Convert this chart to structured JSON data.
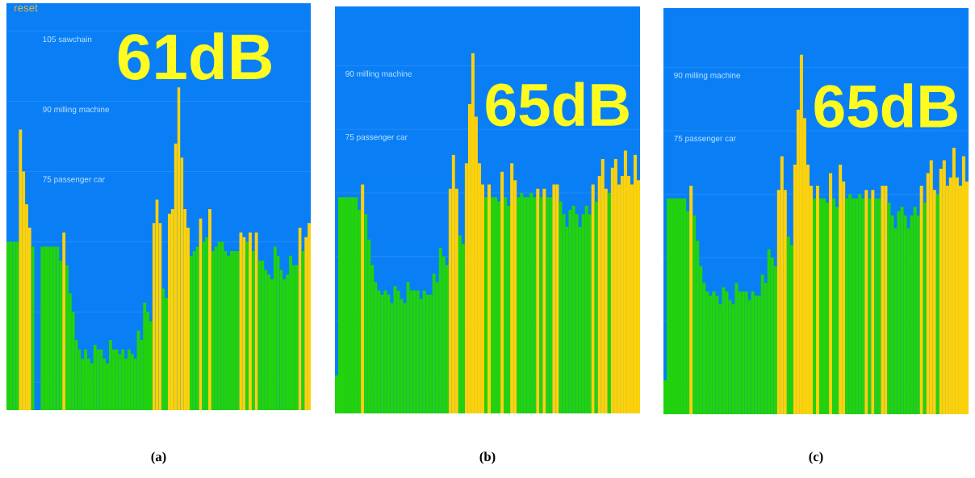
{
  "chart_data": [
    {
      "type": "bar",
      "title": "(a)",
      "annotations": [
        "reset",
        "61dB"
      ],
      "grid": "y",
      "ylim": [
        24,
        111
      ],
      "yticks": [
        {
          "value": 30,
          "label": null
        },
        {
          "value": 45,
          "label": null
        },
        {
          "value": 60,
          "label": null
        },
        {
          "value": 75,
          "label": "75 passenger car"
        },
        {
          "value": 90,
          "label": "90 milling machine"
        },
        {
          "value": 105,
          "label": "105 sawchain"
        }
      ],
      "categories": [
        null,
        null,
        null,
        null,
        null,
        null,
        null,
        null,
        null,
        null,
        null,
        null,
        null,
        null,
        null,
        null,
        null,
        null,
        null,
        null,
        null,
        null,
        null,
        null,
        null,
        null,
        null,
        null,
        null,
        null,
        null,
        null,
        null,
        null,
        null,
        null,
        null,
        null,
        null,
        null,
        null,
        null,
        null,
        null,
        null,
        null,
        null,
        null,
        null,
        null,
        null,
        null,
        null,
        null,
        null,
        null,
        null,
        null,
        null,
        null,
        null,
        null,
        null,
        null,
        null,
        null,
        null,
        null,
        null,
        null,
        null,
        null,
        null,
        null,
        null,
        null,
        null,
        null,
        null,
        null,
        null,
        null,
        null,
        null,
        null,
        null,
        null,
        null,
        null,
        null,
        null,
        null,
        null,
        null,
        null,
        null,
        null,
        null
      ],
      "values": [
        60,
        60,
        60,
        60,
        84,
        75,
        68,
        63,
        59,
        null,
        null,
        59,
        59,
        59,
        59,
        59,
        59,
        56,
        62,
        55,
        49,
        45,
        39,
        37,
        35,
        37,
        35,
        34,
        38,
        37,
        37,
        35,
        34,
        39,
        37,
        37,
        36,
        37,
        35,
        37,
        36,
        35,
        41,
        39,
        47,
        45,
        43,
        64,
        69,
        64,
        50,
        48,
        66,
        67,
        81,
        93,
        78,
        67,
        63,
        57,
        58,
        59,
        65,
        60,
        61,
        67,
        58,
        59,
        60,
        60,
        58,
        57,
        58,
        58,
        58,
        62,
        61,
        60,
        62,
        58,
        62,
        56,
        56,
        54,
        53,
        52,
        59,
        57,
        54,
        52,
        53,
        57,
        55,
        55,
        63,
        58,
        61,
        64
      ],
      "colors": [
        "#22d30c",
        "#22d30c",
        "#22d30c",
        "#22d30c",
        "#fdd20b",
        "#fdd20b",
        "#fdd20b",
        "#fdd20b",
        "#22d30c",
        "#22d30c",
        "#22d30c",
        "#22d30c",
        "#22d30c",
        "#22d30c",
        "#22d30c",
        "#22d30c",
        "#22d30c",
        "#22d30c",
        "#fdd20b",
        "#22d30c",
        "#22d30c",
        "#22d30c",
        "#22d30c",
        "#22d30c",
        "#22d30c",
        "#22d30c",
        "#22d30c",
        "#22d30c",
        "#22d30c",
        "#22d30c",
        "#22d30c",
        "#22d30c",
        "#22d30c",
        "#22d30c",
        "#22d30c",
        "#22d30c",
        "#22d30c",
        "#22d30c",
        "#22d30c",
        "#22d30c",
        "#22d30c",
        "#22d30c",
        "#22d30c",
        "#22d30c",
        "#22d30c",
        "#22d30c",
        "#22d30c",
        "#fdd20b",
        "#fdd20b",
        "#fdd20b",
        "#22d30c",
        "#22d30c",
        "#fdd20b",
        "#fdd20b",
        "#fdd20b",
        "#fdd20b",
        "#fdd20b",
        "#fdd20b",
        "#fdd20b",
        "#22d30c",
        "#22d30c",
        "#22d30c",
        "#fdd20b",
        "#22d30c",
        "#22d30c",
        "#fdd20b",
        "#22d30c",
        "#22d30c",
        "#22d30c",
        "#22d30c",
        "#22d30c",
        "#22d30c",
        "#22d30c",
        "#22d30c",
        "#22d30c",
        "#fdd20b",
        "#fdd20b",
        "#22d30c",
        "#fdd20b",
        "#22d30c",
        "#fdd20b",
        "#22d30c",
        "#22d30c",
        "#22d30c",
        "#22d30c",
        "#22d30c",
        "#22d30c",
        "#22d30c",
        "#22d30c",
        "#22d30c",
        "#22d30c",
        "#22d30c",
        "#22d30c",
        "#22d30c",
        "#fdd20b",
        "#22d30c",
        "#fdd20b",
        "#fdd20b"
      ]
    },
    {
      "type": "bar",
      "title": "(b)",
      "annotations": [
        "65dB"
      ],
      "grid": "y",
      "ylim": [
        8,
        104
      ],
      "yticks": [
        {
          "value": 15,
          "label": null
        },
        {
          "value": 30,
          "label": null
        },
        {
          "value": 45,
          "label": null
        },
        {
          "value": 60,
          "label": null
        },
        {
          "value": 75,
          "label": "75 passenger car"
        },
        {
          "value": 90,
          "label": "90 milling machine"
        }
      ],
      "categories": [
        null,
        null,
        null,
        null,
        null,
        null,
        null,
        null,
        null,
        null,
        null,
        null,
        null,
        null,
        null,
        null,
        null,
        null,
        null,
        null,
        null,
        null,
        null,
        null,
        null,
        null,
        null,
        null,
        null,
        null,
        null,
        null,
        null,
        null,
        null,
        null,
        null,
        null,
        null,
        null,
        null,
        null,
        null,
        null,
        null,
        null,
        null,
        null,
        null,
        null,
        null,
        null,
        null,
        null,
        null,
        null,
        null,
        null,
        null,
        null,
        null,
        null,
        null,
        null,
        null,
        null,
        null,
        null,
        null,
        null,
        null,
        null,
        null,
        null,
        null,
        null,
        null,
        null,
        null,
        null,
        null,
        null,
        null,
        null,
        null,
        null,
        null,
        null,
        null,
        null,
        null,
        null,
        null,
        null
      ],
      "values": [
        17,
        59,
        59,
        59,
        59,
        59,
        59,
        56,
        62,
        55,
        49,
        43,
        39,
        37,
        36,
        37,
        36,
        34,
        38,
        37,
        35,
        34,
        39,
        37,
        37,
        37,
        35,
        37,
        36,
        36,
        41,
        39,
        47,
        45,
        43,
        61,
        69,
        61,
        50,
        48,
        67,
        81,
        93,
        78,
        67,
        62,
        59,
        62,
        59,
        59,
        58,
        65,
        59,
        57,
        67,
        63,
        59,
        60,
        59,
        59,
        60,
        59,
        61,
        59,
        61,
        59,
        59,
        62,
        62,
        58,
        55,
        52,
        56,
        57,
        55,
        52,
        55,
        57,
        55,
        62,
        58,
        64,
        68,
        61,
        60,
        66,
        68,
        62,
        64,
        70,
        64,
        62,
        69,
        63
      ],
      "colors": [
        "#22d30c",
        "#22d30c",
        "#22d30c",
        "#22d30c",
        "#22d30c",
        "#22d30c",
        "#22d30c",
        "#22d30c",
        "#fdd20b",
        "#22d30c",
        "#22d30c",
        "#22d30c",
        "#22d30c",
        "#22d30c",
        "#22d30c",
        "#22d30c",
        "#22d30c",
        "#22d30c",
        "#22d30c",
        "#22d30c",
        "#22d30c",
        "#22d30c",
        "#22d30c",
        "#22d30c",
        "#22d30c",
        "#22d30c",
        "#22d30c",
        "#22d30c",
        "#22d30c",
        "#22d30c",
        "#22d30c",
        "#22d30c",
        "#22d30c",
        "#22d30c",
        "#22d30c",
        "#fdd20b",
        "#fdd20b",
        "#fdd20b",
        "#22d30c",
        "#22d30c",
        "#fdd20b",
        "#fdd20b",
        "#fdd20b",
        "#fdd20b",
        "#fdd20b",
        "#fdd20b",
        "#22d30c",
        "#fdd20b",
        "#22d30c",
        "#22d30c",
        "#22d30c",
        "#fdd20b",
        "#22d30c",
        "#22d30c",
        "#fdd20b",
        "#fdd20b",
        "#22d30c",
        "#22d30c",
        "#22d30c",
        "#22d30c",
        "#22d30c",
        "#22d30c",
        "#fdd20b",
        "#22d30c",
        "#fdd20b",
        "#22d30c",
        "#22d30c",
        "#fdd20b",
        "#fdd20b",
        "#22d30c",
        "#22d30c",
        "#22d30c",
        "#22d30c",
        "#22d30c",
        "#22d30c",
        "#22d30c",
        "#22d30c",
        "#22d30c",
        "#22d30c",
        "#fdd20b",
        "#22d30c",
        "#fdd20b",
        "#fdd20b",
        "#fdd20b",
        "#22d30c",
        "#fdd20b",
        "#fdd20b",
        "#fdd20b",
        "#fdd20b",
        "#fdd20b",
        "#fdd20b",
        "#fdd20b",
        "#fdd20b",
        "#fdd20b"
      ]
    },
    {
      "type": "bar",
      "title": "(c)",
      "annotations": [
        "65dB"
      ],
      "grid": "y",
      "ylim": [
        8,
        104
      ],
      "yticks": [
        {
          "value": 15,
          "label": null
        },
        {
          "value": 30,
          "label": null
        },
        {
          "value": 45,
          "label": null
        },
        {
          "value": 60,
          "label": null
        },
        {
          "value": 75,
          "label": "75 passenger car"
        },
        {
          "value": 90,
          "label": "90 milling machine"
        }
      ],
      "categories": [
        null,
        null,
        null,
        null,
        null,
        null,
        null,
        null,
        null,
        null,
        null,
        null,
        null,
        null,
        null,
        null,
        null,
        null,
        null,
        null,
        null,
        null,
        null,
        null,
        null,
        null,
        null,
        null,
        null,
        null,
        null,
        null,
        null,
        null,
        null,
        null,
        null,
        null,
        null,
        null,
        null,
        null,
        null,
        null,
        null,
        null,
        null,
        null,
        null,
        null,
        null,
        null,
        null,
        null,
        null,
        null,
        null,
        null,
        null,
        null,
        null,
        null,
        null,
        null,
        null,
        null,
        null,
        null,
        null,
        null,
        null,
        null,
        null,
        null,
        null,
        null,
        null,
        null,
        null,
        null,
        null,
        null,
        null,
        null,
        null,
        null,
        null,
        null,
        null,
        null,
        null,
        null,
        null,
        null
      ],
      "values": [
        16,
        59,
        59,
        59,
        59,
        59,
        59,
        56,
        62,
        55,
        49,
        43,
        39,
        37,
        36,
        37,
        36,
        34,
        38,
        37,
        35,
        34,
        39,
        37,
        37,
        37,
        35,
        37,
        36,
        36,
        41,
        39,
        47,
        45,
        43,
        61,
        69,
        61,
        50,
        48,
        67,
        80,
        93,
        78,
        67,
        62,
        59,
        62,
        59,
        59,
        58,
        65,
        59,
        57,
        67,
        63,
        59,
        60,
        59,
        59,
        60,
        59,
        61,
        59,
        61,
        59,
        59,
        62,
        62,
        58,
        55,
        52,
        56,
        57,
        55,
        52,
        55,
        57,
        55,
        62,
        58,
        65,
        68,
        61,
        60,
        66,
        68,
        62,
        64,
        71,
        64,
        62,
        69,
        63
      ],
      "colors": [
        "#22d30c",
        "#22d30c",
        "#22d30c",
        "#22d30c",
        "#22d30c",
        "#22d30c",
        "#22d30c",
        "#22d30c",
        "#fdd20b",
        "#22d30c",
        "#22d30c",
        "#22d30c",
        "#22d30c",
        "#22d30c",
        "#22d30c",
        "#22d30c",
        "#22d30c",
        "#22d30c",
        "#22d30c",
        "#22d30c",
        "#22d30c",
        "#22d30c",
        "#22d30c",
        "#22d30c",
        "#22d30c",
        "#22d30c",
        "#22d30c",
        "#22d30c",
        "#22d30c",
        "#22d30c",
        "#22d30c",
        "#22d30c",
        "#22d30c",
        "#22d30c",
        "#22d30c",
        "#fdd20b",
        "#fdd20b",
        "#fdd20b",
        "#22d30c",
        "#22d30c",
        "#fdd20b",
        "#fdd20b",
        "#fdd20b",
        "#fdd20b",
        "#fdd20b",
        "#fdd20b",
        "#22d30c",
        "#fdd20b",
        "#22d30c",
        "#22d30c",
        "#22d30c",
        "#fdd20b",
        "#22d30c",
        "#22d30c",
        "#fdd20b",
        "#fdd20b",
        "#22d30c",
        "#22d30c",
        "#22d30c",
        "#22d30c",
        "#22d30c",
        "#22d30c",
        "#fdd20b",
        "#22d30c",
        "#fdd20b",
        "#22d30c",
        "#22d30c",
        "#fdd20b",
        "#fdd20b",
        "#22d30c",
        "#22d30c",
        "#22d30c",
        "#22d30c",
        "#22d30c",
        "#22d30c",
        "#22d30c",
        "#22d30c",
        "#22d30c",
        "#22d30c",
        "#fdd20b",
        "#22d30c",
        "#fdd20b",
        "#fdd20b",
        "#fdd20b",
        "#22d30c",
        "#fdd20b",
        "#fdd20b",
        "#fdd20b",
        "#fdd20b",
        "#fdd20b",
        "#fdd20b",
        "#fdd20b",
        "#fdd20b",
        "#fdd20b"
      ]
    }
  ]
}
